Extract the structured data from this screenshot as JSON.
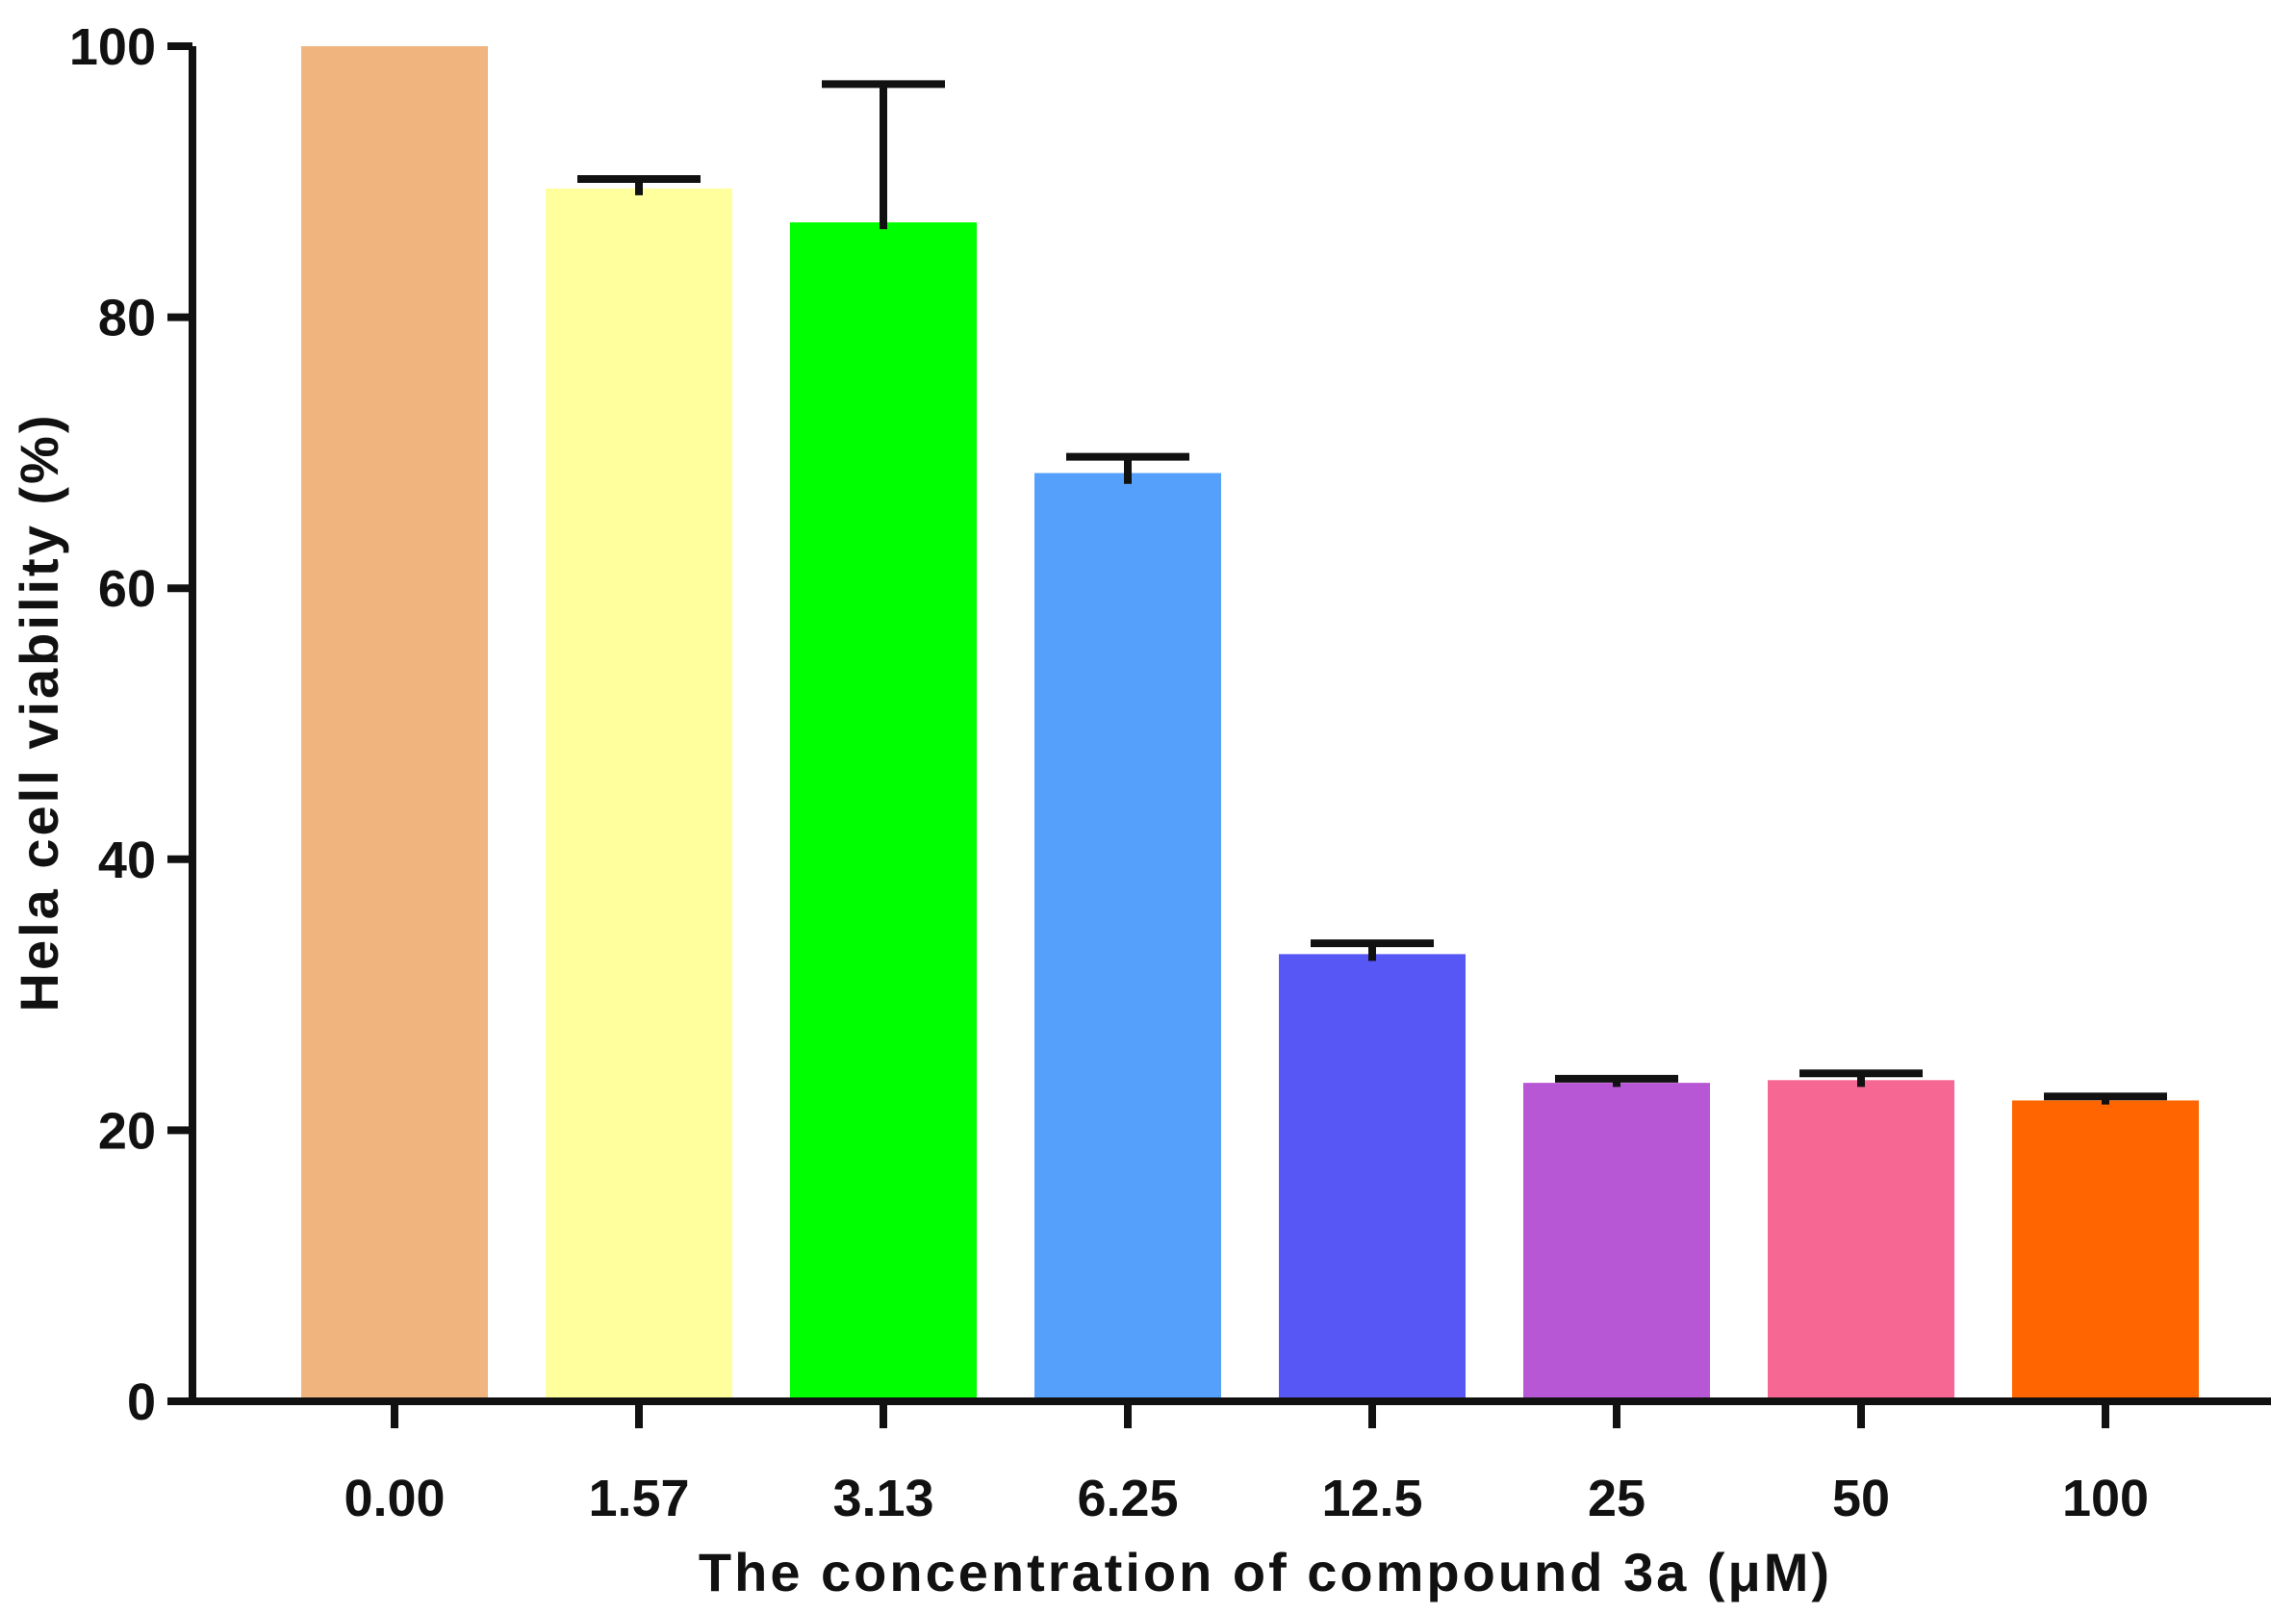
{
  "chart_data": {
    "type": "bar",
    "title": "",
    "xlabel": "The concentration of compound 3a (μM)",
    "ylabel": "Hela cell viability (%)",
    "ylim": [
      0,
      100
    ],
    "yticks": [
      0,
      20,
      40,
      60,
      80,
      100
    ],
    "ytick_labels": [
      "0",
      "20",
      "40",
      "60",
      "80",
      "100"
    ],
    "grid": false,
    "legend": "none",
    "categories": [
      "0.00",
      "1.57",
      "3.13",
      "6.25",
      "12.5",
      "25",
      "50",
      "100"
    ],
    "values": [
      100,
      89.5,
      87,
      68.5,
      33,
      23.5,
      23.7,
      22.2
    ],
    "error_upper": [
      0,
      0.7,
      10.2,
      1.2,
      0.8,
      0.3,
      0.5,
      0.3
    ],
    "error_lower": [
      0,
      0.5,
      0.5,
      0.8,
      0.5,
      0.3,
      0.5,
      0.3
    ],
    "colors": [
      "#F0B47E",
      "#FFFF9E",
      "#00FF00",
      "#55A0FB",
      "#5757F6",
      "#B757D6",
      "#F76794",
      "#FF6500"
    ]
  }
}
